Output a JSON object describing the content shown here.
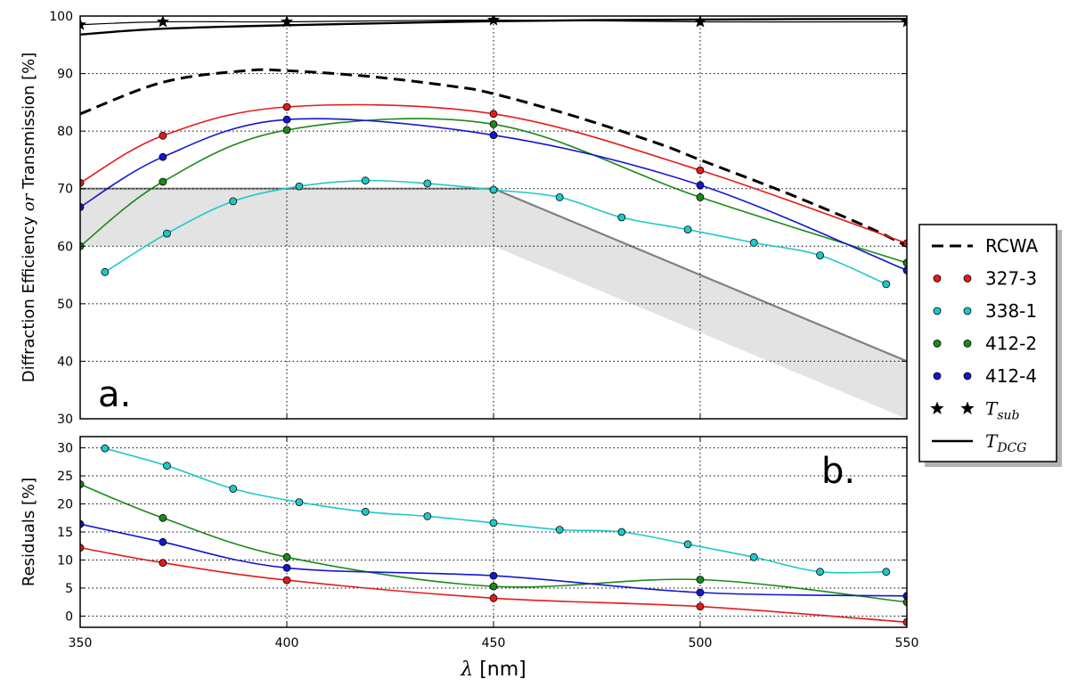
{
  "chart_data": [
    {
      "type": "line",
      "panel_label": "a.",
      "ylabel": "Diffraction Efficiency or Transmission [%]",
      "ylabel_parts": [
        "Diffraction Efficiency ",
        "or",
        " Transmission [%]"
      ],
      "xlim": [
        350,
        550
      ],
      "ylim": [
        30,
        100
      ],
      "xticks": [
        350,
        400,
        450,
        500,
        550
      ],
      "yticks": [
        30,
        40,
        50,
        60,
        70,
        80,
        90,
        100
      ],
      "grid": true,
      "band": {
        "upper": [
          [
            350,
            70
          ],
          [
            450,
            70
          ],
          [
            550,
            40
          ]
        ],
        "lower": [
          [
            350,
            60
          ],
          [
            450,
            60
          ],
          [
            550,
            30
          ]
        ]
      },
      "series": [
        {
          "name": "RCWA",
          "color": "#000000",
          "style": "dashed",
          "x": [
            350,
            370,
            390,
            400,
            420,
            440,
            450,
            470,
            490,
            500,
            520,
            540,
            550
          ],
          "y": [
            83,
            88.5,
            90.5,
            90.5,
            89.5,
            87.8,
            86.5,
            82.5,
            77.8,
            75,
            69.5,
            63.5,
            60
          ]
        },
        {
          "name": "327-3",
          "color": "#e41a1c",
          "style": "markers-line",
          "x": [
            350,
            370,
            400,
            450,
            500,
            550
          ],
          "y": [
            71,
            79.2,
            84.2,
            83,
            73.2,
            60.5
          ]
        },
        {
          "name": "338-1",
          "color": "#1ec8c8",
          "style": "markers-line",
          "x": [
            356,
            371,
            387,
            403,
            419,
            434,
            450,
            466,
            481,
            497,
            513,
            529,
            545
          ],
          "y": [
            55.5,
            62.2,
            67.8,
            70.4,
            71.4,
            70.9,
            69.8,
            68.5,
            65,
            62.9,
            60.6,
            58.4,
            53.4
          ]
        },
        {
          "name": "412-2",
          "color": "#1a8a1a",
          "style": "markers-line",
          "x": [
            350,
            370,
            400,
            450,
            500,
            550
          ],
          "y": [
            60,
            71.2,
            80.2,
            81.2,
            68.5,
            57.1
          ]
        },
        {
          "name": "412-4",
          "color": "#1515d0",
          "style": "markers-line",
          "x": [
            350,
            370,
            400,
            450,
            500,
            550
          ],
          "y": [
            66.8,
            75.5,
            82,
            79.3,
            70.6,
            55.8
          ]
        },
        {
          "name": "T_sub",
          "color": "#000000",
          "style": "stars-line",
          "x": [
            350,
            370,
            400,
            450,
            500,
            550
          ],
          "y": [
            98.5,
            99,
            99,
            99.3,
            99,
            99
          ]
        },
        {
          "name": "T_DCG",
          "color": "#000000",
          "style": "thick-line",
          "x": [
            350,
            370,
            400,
            450,
            500,
            550
          ],
          "y": [
            96.8,
            97.8,
            98.4,
            99.1,
            99.4,
            99.5
          ]
        }
      ]
    },
    {
      "type": "line",
      "panel_label": "b.",
      "ylabel": "Residuals [%]",
      "xlabel": "λ [nm]",
      "xlabel_parts": [
        "λ",
        " [nm]"
      ],
      "xlim": [
        350,
        550
      ],
      "ylim": [
        -2,
        32
      ],
      "xticks": [
        350,
        400,
        450,
        500,
        550
      ],
      "yticks": [
        0,
        5,
        10,
        15,
        20,
        25,
        30
      ],
      "grid": true,
      "series": [
        {
          "name": "327-3",
          "color": "#e41a1c",
          "x": [
            350,
            370,
            400,
            450,
            500,
            550
          ],
          "y": [
            12.2,
            9.5,
            6.4,
            3.2,
            1.7,
            -1.1
          ]
        },
        {
          "name": "338-1",
          "color": "#1ec8c8",
          "x": [
            356,
            371,
            387,
            403,
            419,
            434,
            450,
            466,
            481,
            497,
            513,
            529,
            545
          ],
          "y": [
            29.9,
            26.8,
            22.7,
            20.3,
            18.6,
            17.8,
            16.6,
            15.4,
            15,
            12.8,
            10.5,
            7.9,
            7.9
          ]
        },
        {
          "name": "412-2",
          "color": "#1a8a1a",
          "x": [
            350,
            370,
            400,
            450,
            500,
            550
          ],
          "y": [
            23.5,
            17.5,
            10.5,
            5.3,
            6.5,
            2.5
          ]
        },
        {
          "name": "412-4",
          "color": "#1515d0",
          "x": [
            350,
            370,
            400,
            450,
            500,
            550
          ],
          "y": [
            16.4,
            13.2,
            8.6,
            7.2,
            4.2,
            3.6
          ]
        }
      ]
    }
  ],
  "legend": {
    "placement": "right",
    "entries": [
      {
        "label": "RCWA",
        "kind": "dash",
        "color": "#000000"
      },
      {
        "label": "327-3",
        "kind": "dots",
        "color": "#e41a1c"
      },
      {
        "label": "338-1",
        "kind": "dots",
        "color": "#1ec8c8"
      },
      {
        "label": "412-2",
        "kind": "dots",
        "color": "#1a8a1a"
      },
      {
        "label": "412-4",
        "kind": "dots",
        "color": "#1515d0"
      },
      {
        "label": "T",
        "sub": "sub",
        "kind": "stars",
        "color": "#000000"
      },
      {
        "label": "T",
        "sub": "DCG",
        "kind": "line",
        "color": "#000000"
      }
    ]
  }
}
